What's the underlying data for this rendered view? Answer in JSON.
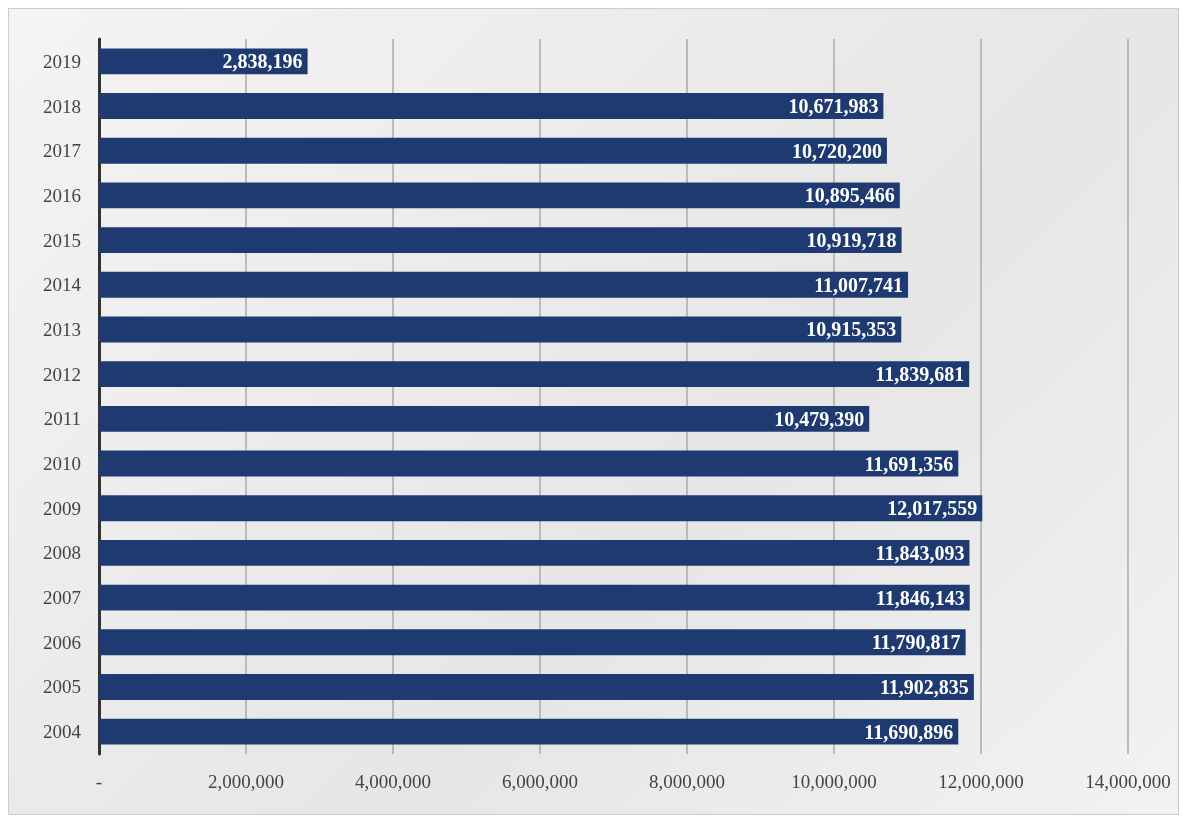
{
  "chart_data": {
    "type": "bar",
    "orientation": "horizontal",
    "categories": [
      "2019",
      "2018",
      "2017",
      "2016",
      "2015",
      "2014",
      "2013",
      "2012",
      "2011",
      "2010",
      "2009",
      "2008",
      "2007",
      "2006",
      "2005",
      "2004"
    ],
    "values": [
      2838196,
      10671983,
      10720200,
      10895466,
      10919718,
      11007741,
      10915353,
      11839681,
      10479390,
      11691356,
      12017559,
      11843093,
      11846143,
      11790817,
      11902835,
      11690896
    ],
    "color": "#1f3a70",
    "xlim": [
      0,
      14000000
    ],
    "xticks": [
      {
        "value": 0,
        "label": "-"
      },
      {
        "value": 2000000,
        "label": "2,000,000"
      },
      {
        "value": 4000000,
        "label": "4,000,000"
      },
      {
        "value": 6000000,
        "label": "6,000,000"
      },
      {
        "value": 8000000,
        "label": "8,000,000"
      },
      {
        "value": 10000000,
        "label": "10,000,000"
      },
      {
        "value": 12000000,
        "label": "12,000,000"
      },
      {
        "value": 14000000,
        "label": "14,000,000"
      }
    ],
    "value_labels": [
      "2,838,196",
      "10,671,983",
      "10,720,200",
      "10,895,466",
      "10,919,718",
      "11,007,741",
      "10,915,353",
      "11,839,681",
      "10,479,390",
      "11,691,356",
      "12,017,559",
      "11,843,093",
      "11,846,143",
      "11,790,817",
      "11,902,835",
      "11,690,896"
    ],
    "grid": "x"
  }
}
